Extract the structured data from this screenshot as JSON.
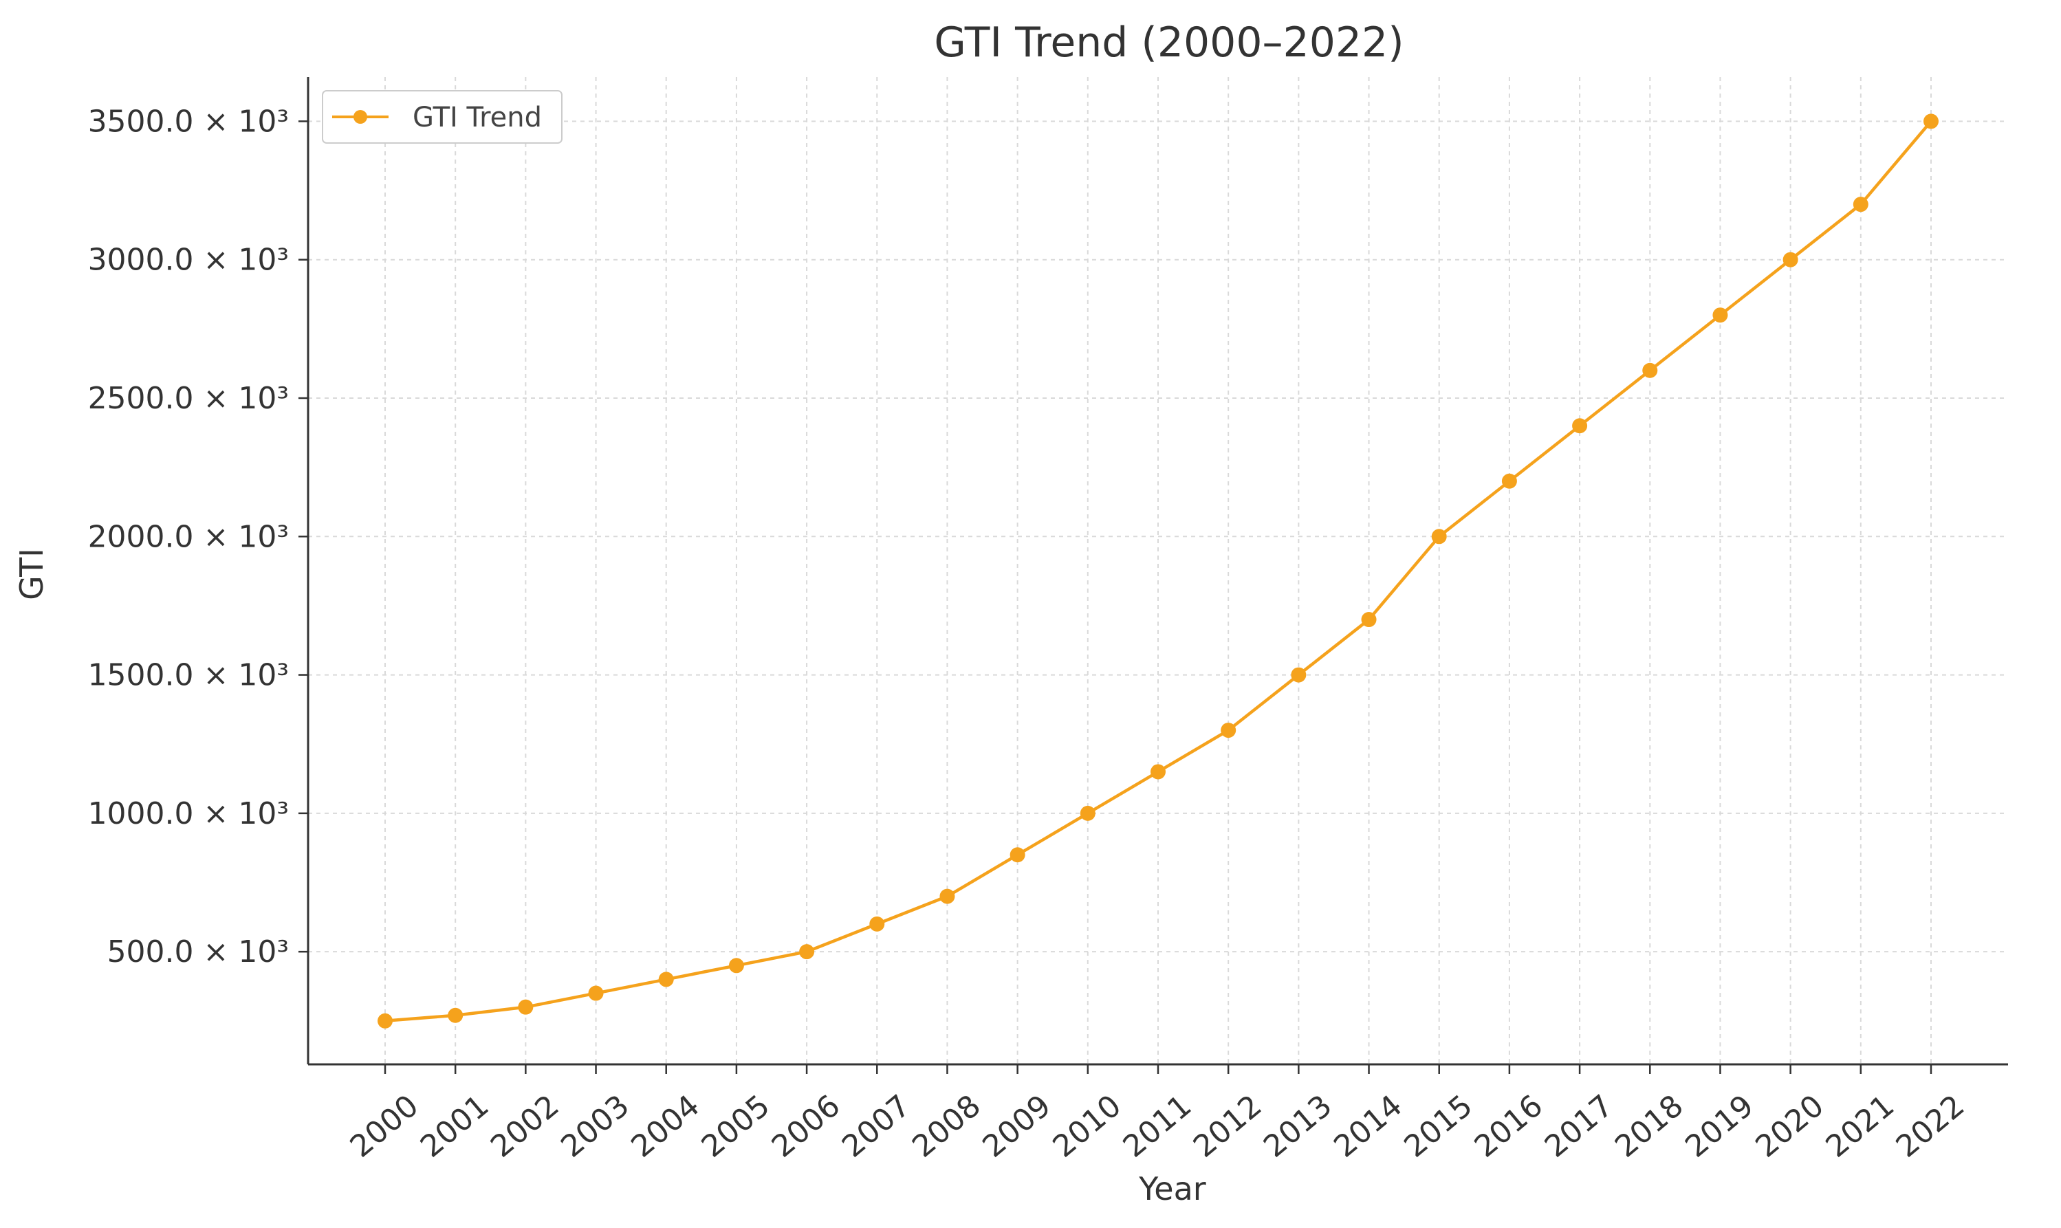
{
  "chart_data": {
    "type": "line",
    "title": "GTI Trend (2000–2022)",
    "xlabel": "Year",
    "ylabel": "GTI",
    "x": [
      "2000",
      "2001",
      "2002",
      "2003",
      "2004",
      "2005",
      "2006",
      "2007",
      "2008",
      "2009",
      "2010",
      "2011",
      "2012",
      "2013",
      "2014",
      "2015",
      "2016",
      "2017",
      "2018",
      "2019",
      "2020",
      "2021",
      "2022"
    ],
    "series": [
      {
        "name": "GTI Trend",
        "color": "#f5a21c",
        "values": [
          250000,
          270000,
          300000,
          350000,
          400000,
          450000,
          500000,
          600000,
          700000,
          850000,
          1000000,
          1150000,
          1300000,
          1500000,
          1700000,
          2000000,
          2200000,
          2400000,
          2600000,
          2800000,
          3000000,
          3200000,
          3500000
        ]
      }
    ],
    "yticks": [
      500000,
      1000000,
      1500000,
      2000000,
      2500000,
      3000000,
      3500000
    ],
    "ytick_labels": [
      "500.0 × 10³",
      "1000.0 × 10³",
      "1500.0 × 10³",
      "2000.0 × 10³",
      "2500.0 × 10³",
      "3000.0 × 10³",
      "3500.0 × 10³"
    ],
    "ylim": [
      93000,
      3660000
    ],
    "grid": true,
    "legend_position": "top-left"
  }
}
